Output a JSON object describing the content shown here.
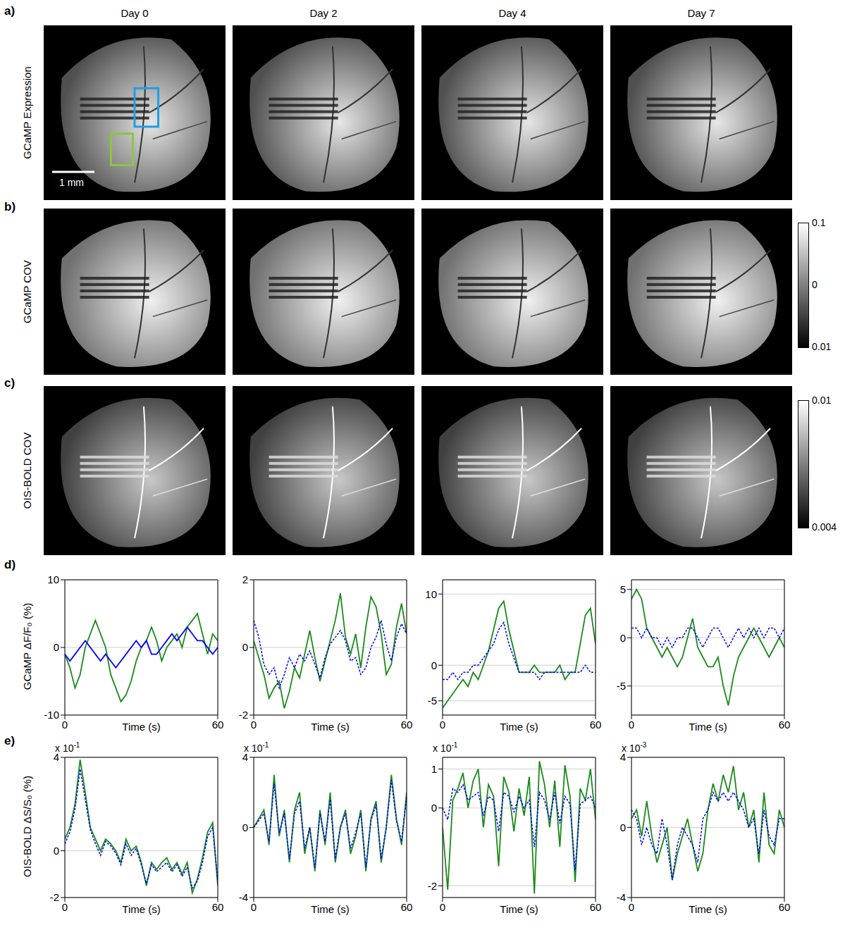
{
  "figure": {
    "panel_labels": [
      "a)",
      "b)",
      "c)",
      "d)",
      "e)"
    ],
    "columns": [
      "Day 0",
      "Day 2",
      "Day 4",
      "Day 7"
    ],
    "image_rows": [
      {
        "label": "GCaMP Expression",
        "scale_bar": "1 mm"
      },
      {
        "label": "GCaMP COV",
        "colorbar_labels": [
          "0.1",
          "0",
          "0.01"
        ]
      },
      {
        "label": "OIS-BOLD COV",
        "colorbar_labels": [
          "0.01",
          "0.004"
        ]
      }
    ],
    "chart_rows": [
      {
        "y_label": "GCaMP ΔF/F₀ (%)"
      },
      {
        "y_label": "OIS-BOLD ΔS/S₀ (%)"
      }
    ]
  },
  "chart_data": [
    {
      "type": "line",
      "x_label": "Time (s)",
      "grid": true,
      "x": [
        0,
        2,
        4,
        6,
        8,
        10,
        12,
        14,
        16,
        18,
        20,
        22,
        24,
        26,
        28,
        30,
        32,
        34,
        36,
        38,
        40,
        42,
        44,
        46,
        48,
        50,
        52,
        54,
        56,
        58,
        60
      ],
      "xlim": [
        0,
        60
      ],
      "xticks": [
        0,
        60
      ],
      "ylim": [
        -10,
        10
      ],
      "yticks": [
        -10,
        0,
        10
      ],
      "series": [
        {
          "color": "#1a8a1a",
          "line_style": "solid",
          "values": [
            -1,
            -3,
            -6,
            -4,
            0,
            2,
            4,
            2,
            0,
            -4,
            -6,
            -8,
            -7,
            -5,
            -2,
            0,
            1,
            3,
            1,
            -2,
            0,
            1,
            2,
            0,
            3,
            4,
            5,
            2,
            -1,
            2,
            1
          ]
        },
        {
          "color": "#0000ff",
          "line_style": "solid",
          "values": [
            -1,
            -2,
            -1,
            0,
            1,
            0,
            -1,
            -2,
            -1,
            -2,
            -3,
            -2,
            -1,
            0,
            1,
            0,
            1,
            -1,
            -1,
            0,
            1,
            2,
            1,
            2,
            3,
            2,
            1,
            1,
            0,
            -1,
            0
          ]
        }
      ]
    },
    {
      "type": "line",
      "x_label": "Time (s)",
      "grid": true,
      "x": [
        0,
        2,
        4,
        6,
        8,
        10,
        12,
        14,
        16,
        18,
        20,
        22,
        24,
        26,
        28,
        30,
        32,
        34,
        36,
        38,
        40,
        42,
        44,
        46,
        48,
        50,
        52,
        54,
        56,
        58,
        60
      ],
      "xlim": [
        0,
        60
      ],
      "xticks": [
        0,
        60
      ],
      "ylim": [
        -2,
        2
      ],
      "yticks": [
        -2,
        0,
        2
      ],
      "series": [
        {
          "color": "#1a8a1a",
          "line_style": "solid",
          "values": [
            0.2,
            -0.3,
            -0.8,
            -1.5,
            -1.2,
            -1.0,
            -1.8,
            -1.3,
            -0.6,
            -0.9,
            -0.2,
            0.5,
            -0.3,
            -1.0,
            -0.4,
            0.2,
            0.8,
            1.6,
            0.3,
            -0.2,
            0.4,
            -0.6,
            0.6,
            1.5,
            1.2,
            0.4,
            -0.8,
            -0.5,
            0.6,
            1.3,
            0.4
          ]
        },
        {
          "color": "#0000ff",
          "line_style": "dotted",
          "values": [
            0.8,
            0.3,
            -0.5,
            -0.8,
            -0.6,
            -1.2,
            -0.8,
            -0.3,
            -0.6,
            -0.2,
            -0.4,
            -0.1,
            -0.5,
            -0.9,
            -0.3,
            0.1,
            0.3,
            0.5,
            0.2,
            -0.4,
            -0.3,
            -0.8,
            -0.6,
            0.0,
            0.3,
            0.8,
            0.1,
            -0.4,
            0.3,
            0.7,
            0.4
          ]
        }
      ]
    },
    {
      "type": "line",
      "x_label": "Time (s)",
      "grid": true,
      "x": [
        0,
        2,
        4,
        6,
        8,
        10,
        12,
        14,
        16,
        18,
        20,
        22,
        24,
        26,
        28,
        30,
        32,
        34,
        36,
        38,
        40,
        42,
        44,
        46,
        48,
        50,
        52,
        54,
        56,
        58,
        60
      ],
      "xlim": [
        0,
        60
      ],
      "xticks": [
        0,
        60
      ],
      "ylim": [
        -7,
        12
      ],
      "yticks": [
        -5,
        0,
        10
      ],
      "series": [
        {
          "color": "#1a8a1a",
          "line_style": "solid",
          "values": [
            -6,
            -5,
            -4,
            -3,
            -2,
            -3,
            -1,
            -2,
            0,
            2,
            5,
            8,
            9,
            5,
            2,
            -1,
            -1,
            -1,
            0,
            -1,
            -1,
            -1,
            -1,
            0,
            -2,
            -1,
            -1,
            3,
            7,
            8,
            3
          ]
        },
        {
          "color": "#0000ff",
          "line_style": "dotted",
          "values": [
            -2,
            -2,
            -1,
            -2,
            -1,
            -1,
            0,
            0,
            1,
            2,
            3,
            5,
            6,
            3,
            1,
            -1,
            -1,
            -1,
            -1,
            -2,
            -1,
            -1,
            -1,
            -1,
            -1,
            -1,
            -1,
            -1,
            0,
            -1,
            -1
          ]
        }
      ]
    },
    {
      "type": "line",
      "x_label": "Time (s)",
      "grid": true,
      "x": [
        0,
        2,
        4,
        6,
        8,
        10,
        12,
        14,
        16,
        18,
        20,
        22,
        24,
        26,
        28,
        30,
        32,
        34,
        36,
        38,
        40,
        42,
        44,
        46,
        48,
        50,
        52,
        54,
        56,
        58,
        60
      ],
      "xlim": [
        0,
        60
      ],
      "xticks": [
        0,
        60
      ],
      "ylim": [
        -8,
        6
      ],
      "yticks": [
        -5,
        0,
        5
      ],
      "series": [
        {
          "color": "#1a8a1a",
          "line_style": "solid",
          "values": [
            4,
            5,
            4,
            1,
            0,
            -1,
            -2,
            -1,
            -2,
            -3,
            -2,
            0,
            2,
            -1,
            -2,
            -3,
            -3,
            -2,
            -5,
            -7,
            -4,
            -2,
            -1,
            0,
            1,
            0,
            -1,
            -2,
            -1,
            0,
            -1
          ]
        },
        {
          "color": "#0000ff",
          "line_style": "dotted",
          "values": [
            1,
            1,
            0,
            1,
            0,
            0,
            -1,
            0,
            -1,
            0,
            0,
            1,
            1,
            0,
            -1,
            0,
            1,
            1,
            0,
            -1,
            0,
            1,
            0,
            1,
            0,
            1,
            0,
            1,
            1,
            0,
            1
          ]
        }
      ]
    },
    {
      "type": "line",
      "x_label": "Time (s)",
      "grid": true,
      "scale_note": "x 10",
      "scale_exponent": "-1",
      "x": [
        0,
        2,
        4,
        6,
        8,
        10,
        12,
        14,
        16,
        18,
        20,
        22,
        24,
        26,
        28,
        30,
        32,
        34,
        36,
        38,
        40,
        42,
        44,
        46,
        48,
        50,
        52,
        54,
        56,
        58,
        60
      ],
      "xlim": [
        0,
        60
      ],
      "xticks": [
        0,
        60
      ],
      "ylim": [
        -2,
        4
      ],
      "yticks": [
        -2,
        0,
        4
      ],
      "series": [
        {
          "color": "#1a8a1a",
          "line_style": "solid",
          "values": [
            0.5,
            1,
            2,
            3.9,
            2.5,
            1,
            0.5,
            0,
            0.5,
            0.3,
            0,
            -0.5,
            0.5,
            0,
            0.2,
            -0.5,
            -1.5,
            -0.5,
            -0.8,
            -0.5,
            -0.3,
            -0.8,
            -0.5,
            -1,
            -0.5,
            -1.8,
            -1.2,
            -0.3,
            0.8,
            1.2,
            -1.5
          ]
        },
        {
          "color": "#0000ff",
          "line_style": "dotted",
          "values": [
            0.3,
            0.8,
            1.8,
            3.5,
            2.2,
            0.9,
            0.3,
            -0.2,
            0.4,
            0.2,
            -0.1,
            -0.6,
            0.3,
            -0.2,
            0.1,
            -0.6,
            -1.4,
            -0.6,
            -0.9,
            -0.7,
            -0.5,
            -0.9,
            -0.6,
            -1.1,
            -0.7,
            -1.6,
            -1.3,
            -0.5,
            0.6,
            1.0,
            -1.3
          ]
        }
      ]
    },
    {
      "type": "line",
      "x_label": "Time (s)",
      "grid": true,
      "scale_note": "x 10",
      "scale_exponent": "-1",
      "x": [
        0,
        2,
        4,
        6,
        8,
        10,
        12,
        14,
        16,
        18,
        20,
        22,
        24,
        26,
        28,
        30,
        32,
        34,
        36,
        38,
        40,
        42,
        44,
        46,
        48,
        50,
        52,
        54,
        56,
        58,
        60
      ],
      "xlim": [
        0,
        60
      ],
      "xticks": [
        0,
        60
      ],
      "ylim": [
        -4,
        4
      ],
      "yticks": [
        -4,
        0,
        4
      ],
      "series": [
        {
          "color": "#1a8a1a",
          "line_style": "solid",
          "values": [
            0,
            0.5,
            1,
            -1,
            3,
            -0.5,
            1,
            -2,
            1,
            2,
            -1.5,
            0,
            -2.5,
            1,
            -1,
            2,
            -2,
            0,
            1,
            -1.5,
            -0.5,
            1,
            -2.5,
            0.5,
            1.5,
            -2,
            0,
            3,
            0.5,
            -1,
            2
          ]
        },
        {
          "color": "#0000ff",
          "line_style": "dotted",
          "values": [
            0,
            0.4,
            0.8,
            -0.8,
            2.5,
            -0.3,
            0.8,
            -1.8,
            0.8,
            1.5,
            -1.2,
            0,
            -2.3,
            0.8,
            -0.8,
            1.6,
            -1.8,
            0,
            0.8,
            -1.2,
            -0.3,
            0.8,
            -2.3,
            0.4,
            1.3,
            -1.8,
            0,
            2.7,
            0.4,
            -0.8,
            1.8
          ]
        }
      ]
    },
    {
      "type": "line",
      "x_label": "Time (s)",
      "grid": true,
      "scale_note": "x 10",
      "scale_exponent": "-1",
      "x": [
        0,
        2,
        4,
        6,
        8,
        10,
        12,
        14,
        16,
        18,
        20,
        22,
        24,
        26,
        28,
        30,
        32,
        34,
        36,
        38,
        40,
        42,
        44,
        46,
        48,
        50,
        52,
        54,
        56,
        58,
        60
      ],
      "xlim": [
        0,
        60
      ],
      "xticks": [
        0,
        60
      ],
      "ylim": [
        -2.3,
        1.3
      ],
      "yticks": [
        -2,
        0,
        1
      ],
      "series": [
        {
          "color": "#1a8a1a",
          "line_style": "solid",
          "values": [
            -0.5,
            -2.1,
            0.2,
            0.5,
            0.9,
            0,
            0.7,
            1.0,
            -0.5,
            0.6,
            0.3,
            -1.5,
            0.8,
            0.4,
            -0.6,
            0.5,
            -0.2,
            0.8,
            -2.2,
            1.2,
            0.6,
            -0.5,
            0.7,
            -1.0,
            1.1,
            0.3,
            -1.9,
            0.5,
            0.2,
            1.0,
            -0.3
          ]
        },
        {
          "color": "#0000ff",
          "line_style": "dotted",
          "values": [
            0,
            -0.3,
            0.5,
            0.4,
            0.6,
            0.2,
            0.3,
            0.4,
            -0.2,
            0.3,
            0.2,
            -0.6,
            0.4,
            0.3,
            -0.1,
            0.3,
            0,
            0.2,
            -1.0,
            0.4,
            0.2,
            -0.3,
            0.4,
            -0.4,
            0.3,
            0.1,
            -1.6,
            0.1,
            0.2,
            0.3,
            0
          ]
        }
      ]
    },
    {
      "type": "line",
      "x_label": "Time (s)",
      "grid": true,
      "scale_note": "x 10",
      "scale_exponent": "-3",
      "x": [
        0,
        2,
        4,
        6,
        8,
        10,
        12,
        14,
        16,
        18,
        20,
        22,
        24,
        26,
        28,
        30,
        32,
        34,
        36,
        38,
        40,
        42,
        44,
        46,
        48,
        50,
        52,
        54,
        56,
        58,
        60
      ],
      "xlim": [
        0,
        60
      ],
      "xticks": [
        0,
        60
      ],
      "ylim": [
        -4,
        4
      ],
      "yticks": [
        -4,
        0,
        4
      ],
      "series": [
        {
          "color": "#1a8a1a",
          "line_style": "solid",
          "values": [
            0.5,
            1,
            -0.5,
            1.5,
            -0.5,
            -2,
            -1,
            0,
            -3,
            -1.5,
            -0.5,
            0.5,
            -1,
            -2.5,
            -1.5,
            1,
            2.5,
            1.5,
            3,
            2,
            3.5,
            1,
            2,
            0,
            1,
            -2,
            2,
            -1,
            -1.5,
            1,
            0
          ]
        },
        {
          "color": "#0000ff",
          "line_style": "dotted",
          "values": [
            1,
            0.5,
            -1,
            0,
            -1,
            -1.5,
            0.5,
            -1,
            -3,
            -1,
            0,
            -0.5,
            -1,
            -2,
            0.5,
            1,
            2,
            1.5,
            2,
            1.5,
            2,
            1.5,
            1,
            0,
            0.5,
            -1.5,
            1,
            -0.5,
            -1,
            0.5,
            0.5
          ]
        }
      ]
    }
  ]
}
